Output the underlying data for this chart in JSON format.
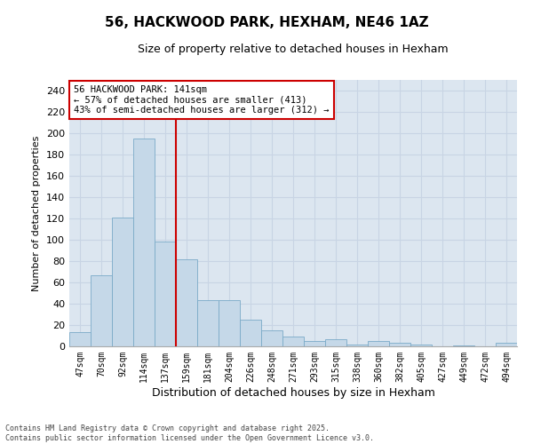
{
  "title1": "56, HACKWOOD PARK, HEXHAM, NE46 1AZ",
  "title2": "Size of property relative to detached houses in Hexham",
  "xlabel": "Distribution of detached houses by size in Hexham",
  "ylabel": "Number of detached properties",
  "categories": [
    "47sqm",
    "70sqm",
    "92sqm",
    "114sqm",
    "137sqm",
    "159sqm",
    "181sqm",
    "204sqm",
    "226sqm",
    "248sqm",
    "271sqm",
    "293sqm",
    "315sqm",
    "338sqm",
    "360sqm",
    "382sqm",
    "405sqm",
    "427sqm",
    "449sqm",
    "472sqm",
    "494sqm"
  ],
  "values": [
    13,
    67,
    121,
    195,
    98,
    82,
    43,
    43,
    25,
    15,
    9,
    5,
    7,
    2,
    5,
    3,
    2,
    0,
    1,
    0,
    3
  ],
  "bar_color": "#c5d8e8",
  "bar_edge_color": "#7aaac8",
  "grid_color": "#c8d4e4",
  "background_color": "#dce6f0",
  "vline_x": 4.5,
  "vline_color": "#cc0000",
  "annotation_text": "56 HACKWOOD PARK: 141sqm\n← 57% of detached houses are smaller (413)\n43% of semi-detached houses are larger (312) →",
  "annotation_box_color": "#cc0000",
  "footer": "Contains HM Land Registry data © Crown copyright and database right 2025.\nContains public sector information licensed under the Open Government Licence v3.0.",
  "ylim": [
    0,
    250
  ],
  "yticks": [
    0,
    20,
    40,
    60,
    80,
    100,
    120,
    140,
    160,
    180,
    200,
    220,
    240
  ]
}
